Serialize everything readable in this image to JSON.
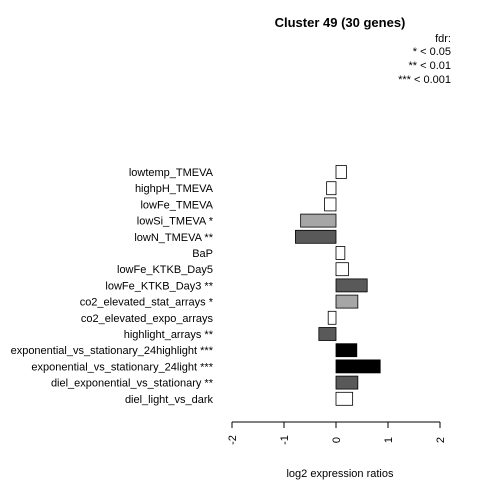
{
  "chart_data": {
    "type": "bar",
    "orientation": "horizontal",
    "title": "Cluster 49 (30 genes)",
    "xlabel": "log2 expression ratios",
    "ylabel": "",
    "xlim": [
      -2,
      2
    ],
    "xticks": [
      "-2",
      "-1",
      "0",
      "1",
      "2"
    ],
    "xtick_values": [
      -2,
      -1,
      0,
      1,
      2
    ],
    "legend": {
      "title": "fdr:",
      "entries": [
        "* < 0.05",
        "** < 0.01",
        "*** < 0.001"
      ],
      "placement": "top-right"
    },
    "categories": [
      "lowtemp_TMEVA",
      "highpH_TMEVA",
      "lowFe_TMEVA",
      "lowSi_TMEVA *",
      "lowN_TMEVA **",
      "BaP",
      "lowFe_KTKB_Day5",
      "lowFe_KTKB_Day3 **",
      "co2_elevated_stat_arrays *",
      "co2_elevated_expo_arrays",
      "highlight_arrays **",
      "exponential_vs_stationary_24highlight ***",
      "exponential_vs_stationary_24light ***",
      "diel_exponential_vs_stationary **",
      "diel_light_vs_dark"
    ],
    "values": [
      0.2,
      -0.18,
      -0.22,
      -0.68,
      -0.78,
      0.17,
      0.24,
      0.6,
      0.42,
      -0.15,
      -0.33,
      0.4,
      0.85,
      0.42,
      0.32
    ],
    "bar_colors": [
      "#ffffff",
      "#ffffff",
      "#ffffff",
      "#a6a6a6",
      "#595959",
      "#ffffff",
      "#ffffff",
      "#595959",
      "#a6a6a6",
      "#ffffff",
      "#595959",
      "#000000",
      "#000000",
      "#595959",
      "#ffffff"
    ],
    "grid": false
  }
}
